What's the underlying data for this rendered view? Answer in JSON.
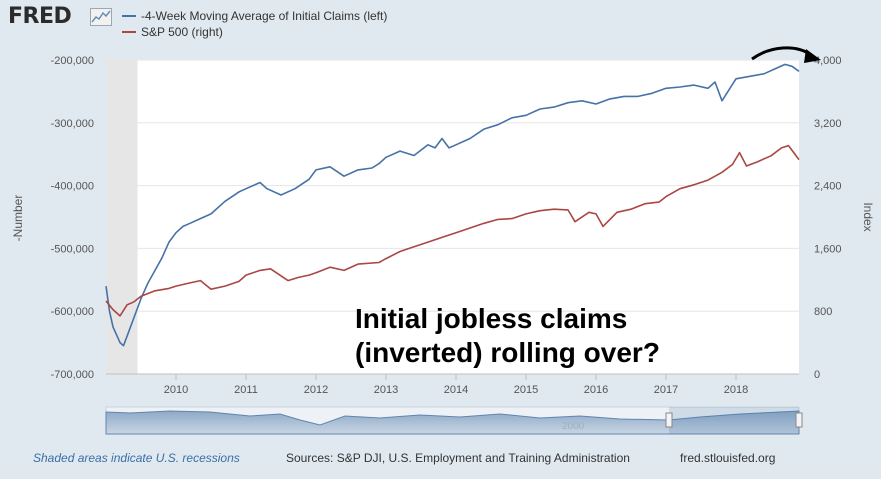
{
  "brand": {
    "logo_text": "FRED"
  },
  "legend": [
    {
      "label": "-4-Week Moving Average of Initial Claims (left)",
      "color": "#4572a7"
    },
    {
      "label": "S&P 500 (right)",
      "color": "#aa4643"
    }
  ],
  "annotation": {
    "line1": "Initial jobless claims",
    "line2": "(inverted) rolling over?"
  },
  "footer": {
    "recession_note": "Shaded areas indicate U.S. recessions",
    "sources": "Sources: S&P DJI, U.S. Employment and Training Administration",
    "site": "fred.stlouisfed.org"
  },
  "chart_data": {
    "type": "line",
    "ylabel_left": "-Number",
    "ylabel_right": "Index",
    "left_ticks": [
      -200000,
      -300000,
      -400000,
      -500000,
      -600000,
      -700000
    ],
    "left_tick_labels": [
      "-200,000",
      "-300,000",
      "-400,000",
      "-500,000",
      "-600,000",
      "-700,000"
    ],
    "right_ticks": [
      4000,
      3200,
      2400,
      1600,
      800,
      0
    ],
    "right_tick_labels": [
      "4,000",
      "3,200",
      "2,400",
      "1,600",
      "800",
      "0"
    ],
    "left_ylim": [
      -700000,
      -200000
    ],
    "right_ylim": [
      0,
      4000
    ],
    "x_tick_labels": [
      "2010",
      "2011",
      "2012",
      "2013",
      "2014",
      "2015",
      "2016",
      "2017",
      "2018"
    ],
    "x_ticks": [
      2010,
      2011,
      2012,
      2013,
      2014,
      2015,
      2016,
      2017,
      2018
    ],
    "xlim": [
      2009.0,
      2018.9
    ],
    "recession": [
      2009.0,
      2009.45
    ],
    "range_selector_label": "2000",
    "series": [
      {
        "name": "-4-Week Moving Average of Initial Claims (left)",
        "color": "#4572a7",
        "axis": "left",
        "x": [
          2009.0,
          2009.05,
          2009.1,
          2009.2,
          2009.25,
          2009.3,
          2009.4,
          2009.5,
          2009.6,
          2009.7,
          2009.8,
          2009.9,
          2010.0,
          2010.1,
          2010.2,
          2010.3,
          2010.5,
          2010.7,
          2010.9,
          2011.0,
          2011.2,
          2011.3,
          2011.5,
          2011.7,
          2011.9,
          2012.0,
          2012.2,
          2012.4,
          2012.6,
          2012.8,
          2012.9,
          2013.0,
          2013.2,
          2013.4,
          2013.6,
          2013.7,
          2013.8,
          2013.9,
          2014.0,
          2014.2,
          2014.4,
          2014.6,
          2014.8,
          2015.0,
          2015.2,
          2015.4,
          2015.6,
          2015.8,
          2016.0,
          2016.2,
          2016.4,
          2016.6,
          2016.8,
          2017.0,
          2017.2,
          2017.4,
          2017.6,
          2017.7,
          2017.8,
          2018.0,
          2018.2,
          2018.4,
          2018.6,
          2018.7,
          2018.8,
          2018.9
        ],
        "y": [
          -560000,
          -600000,
          -625000,
          -650000,
          -655000,
          -640000,
          -610000,
          -580000,
          -555000,
          -535000,
          -515000,
          -490000,
          -475000,
          -465000,
          -460000,
          -455000,
          -445000,
          -425000,
          -410000,
          -405000,
          -395000,
          -405000,
          -415000,
          -405000,
          -390000,
          -375000,
          -370000,
          -385000,
          -375000,
          -372000,
          -365000,
          -355000,
          -345000,
          -352000,
          -335000,
          -340000,
          -325000,
          -340000,
          -335000,
          -325000,
          -310000,
          -303000,
          -292000,
          -288000,
          -278000,
          -275000,
          -268000,
          -265000,
          -270000,
          -262000,
          -258000,
          -258000,
          -253000,
          -245000,
          -243000,
          -240000,
          -245000,
          -235000,
          -265000,
          -230000,
          -226000,
          -222000,
          -212000,
          -207000,
          -210000,
          -218000
        ]
      },
      {
        "name": "S&P 500 (right)",
        "color": "#aa4643",
        "axis": "right",
        "x": [
          2009.0,
          2009.1,
          2009.2,
          2009.3,
          2009.4,
          2009.5,
          2009.7,
          2009.9,
          2010.0,
          2010.2,
          2010.35,
          2010.5,
          2010.7,
          2010.9,
          2011.0,
          2011.2,
          2011.35,
          2011.6,
          2011.75,
          2011.9,
          2012.0,
          2012.2,
          2012.4,
          2012.6,
          2012.9,
          2013.0,
          2013.2,
          2013.4,
          2013.6,
          2013.8,
          2014.0,
          2014.2,
          2014.4,
          2014.6,
          2014.8,
          2015.0,
          2015.2,
          2015.4,
          2015.6,
          2015.7,
          2015.9,
          2016.0,
          2016.1,
          2016.3,
          2016.5,
          2016.7,
          2016.9,
          2017.0,
          2017.2,
          2017.4,
          2017.6,
          2017.8,
          2017.95,
          2018.05,
          2018.15,
          2018.3,
          2018.5,
          2018.65,
          2018.75,
          2018.85,
          2018.9
        ],
        "y": [
          930,
          820,
          740,
          880,
          920,
          990,
          1060,
          1090,
          1120,
          1160,
          1190,
          1080,
          1120,
          1180,
          1260,
          1320,
          1340,
          1190,
          1230,
          1260,
          1290,
          1360,
          1320,
          1400,
          1420,
          1470,
          1560,
          1620,
          1680,
          1740,
          1800,
          1860,
          1920,
          1970,
          1980,
          2040,
          2080,
          2100,
          2090,
          1940,
          2060,
          2040,
          1880,
          2060,
          2100,
          2170,
          2190,
          2260,
          2360,
          2410,
          2470,
          2570,
          2670,
          2820,
          2650,
          2700,
          2780,
          2880,
          2910,
          2790,
          2730
        ]
      }
    ]
  }
}
